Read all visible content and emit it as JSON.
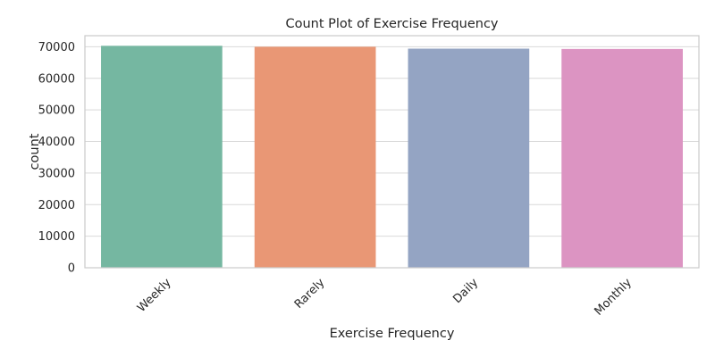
{
  "chart_data": {
    "type": "bar",
    "title": "Count Plot of Exercise Frequency",
    "xlabel": "Exercise Frequency",
    "ylabel": "count",
    "categories": [
      "Weekly",
      "Rarely",
      "Daily",
      "Monthly"
    ],
    "values": [
      70300,
      70000,
      69400,
      69300
    ],
    "colors": [
      "#75b7a1",
      "#e99775",
      "#94a4c3",
      "#dc94c2"
    ],
    "ylim": [
      0,
      73500
    ],
    "yticks": [
      0,
      10000,
      20000,
      30000,
      40000,
      50000,
      60000,
      70000
    ],
    "ytick_labels": [
      "0",
      "10000",
      "20000",
      "30000",
      "40000",
      "50000",
      "60000",
      "70000"
    ],
    "grid": true,
    "xtick_rotation": 45
  }
}
